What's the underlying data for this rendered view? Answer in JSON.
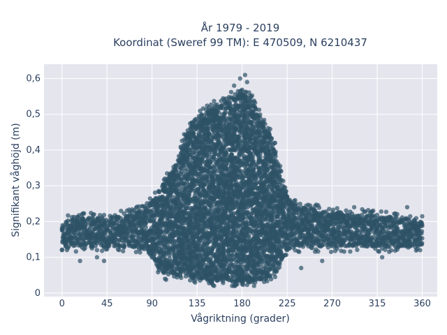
{
  "chart_data": {
    "type": "scatter",
    "title_lines": [
      "År 1979 - 2019",
      "Koordinat (Sweref 99 TM): E 470509, N 6210437"
    ],
    "xlabel": "Vågriktning (grader)",
    "ylabel": "Signifikant våghöjd (m)",
    "xlim": [
      -18,
      375
    ],
    "ylim": [
      -0.01,
      0.64
    ],
    "xticks": [
      0,
      45,
      90,
      135,
      180,
      225,
      270,
      315,
      360
    ],
    "xtick_labels": [
      "0",
      "45",
      "90",
      "135",
      "180",
      "225",
      "270",
      "315",
      "360"
    ],
    "yticks": [
      0,
      0.1,
      0.2,
      0.3,
      0.4,
      0.5,
      0.6
    ],
    "ytick_labels": [
      "0",
      "0,1",
      "0,2",
      "0,3",
      "0,4",
      "0,5",
      "0,6"
    ],
    "grid": true,
    "background": "#e5e5ee",
    "marker_color": "#2e5266",
    "marker_opacity": 0.7,
    "envelope": {
      "description_of_points": "dense cloud of observations; upper/lower extent of the point cloud per direction",
      "direction": [
        0,
        20,
        45,
        70,
        85,
        95,
        105,
        115,
        120,
        130,
        140,
        150,
        160,
        170,
        180,
        190,
        200,
        210,
        215,
        220,
        225,
        235,
        260,
        300,
        340,
        360
      ],
      "upper": [
        0.2,
        0.21,
        0.21,
        0.22,
        0.24,
        0.28,
        0.32,
        0.37,
        0.42,
        0.48,
        0.5,
        0.52,
        0.53,
        0.55,
        0.56,
        0.54,
        0.48,
        0.44,
        0.38,
        0.32,
        0.27,
        0.24,
        0.23,
        0.22,
        0.21,
        0.2
      ],
      "lower": [
        0.13,
        0.13,
        0.13,
        0.13,
        0.12,
        0.07,
        0.05,
        0.05,
        0.05,
        0.04,
        0.04,
        0.03,
        0.03,
        0.03,
        0.03,
        0.03,
        0.04,
        0.05,
        0.06,
        0.09,
        0.12,
        0.13,
        0.13,
        0.13,
        0.13,
        0.13
      ]
    },
    "outliers": [
      {
        "x": 0,
        "y": 0.12
      },
      {
        "x": 18,
        "y": 0.09
      },
      {
        "x": 35,
        "y": 0.1
      },
      {
        "x": 42,
        "y": 0.09
      },
      {
        "x": 65,
        "y": 0.23
      },
      {
        "x": 183,
        "y": 0.61
      },
      {
        "x": 178,
        "y": 0.6
      },
      {
        "x": 185,
        "y": 0.59
      },
      {
        "x": 172,
        "y": 0.58
      },
      {
        "x": 213,
        "y": 0.42
      },
      {
        "x": 239,
        "y": 0.07
      },
      {
        "x": 260,
        "y": 0.09
      },
      {
        "x": 292,
        "y": 0.24
      },
      {
        "x": 320,
        "y": 0.1
      },
      {
        "x": 345,
        "y": 0.24
      },
      {
        "x": 358,
        "y": 0.12
      }
    ]
  }
}
